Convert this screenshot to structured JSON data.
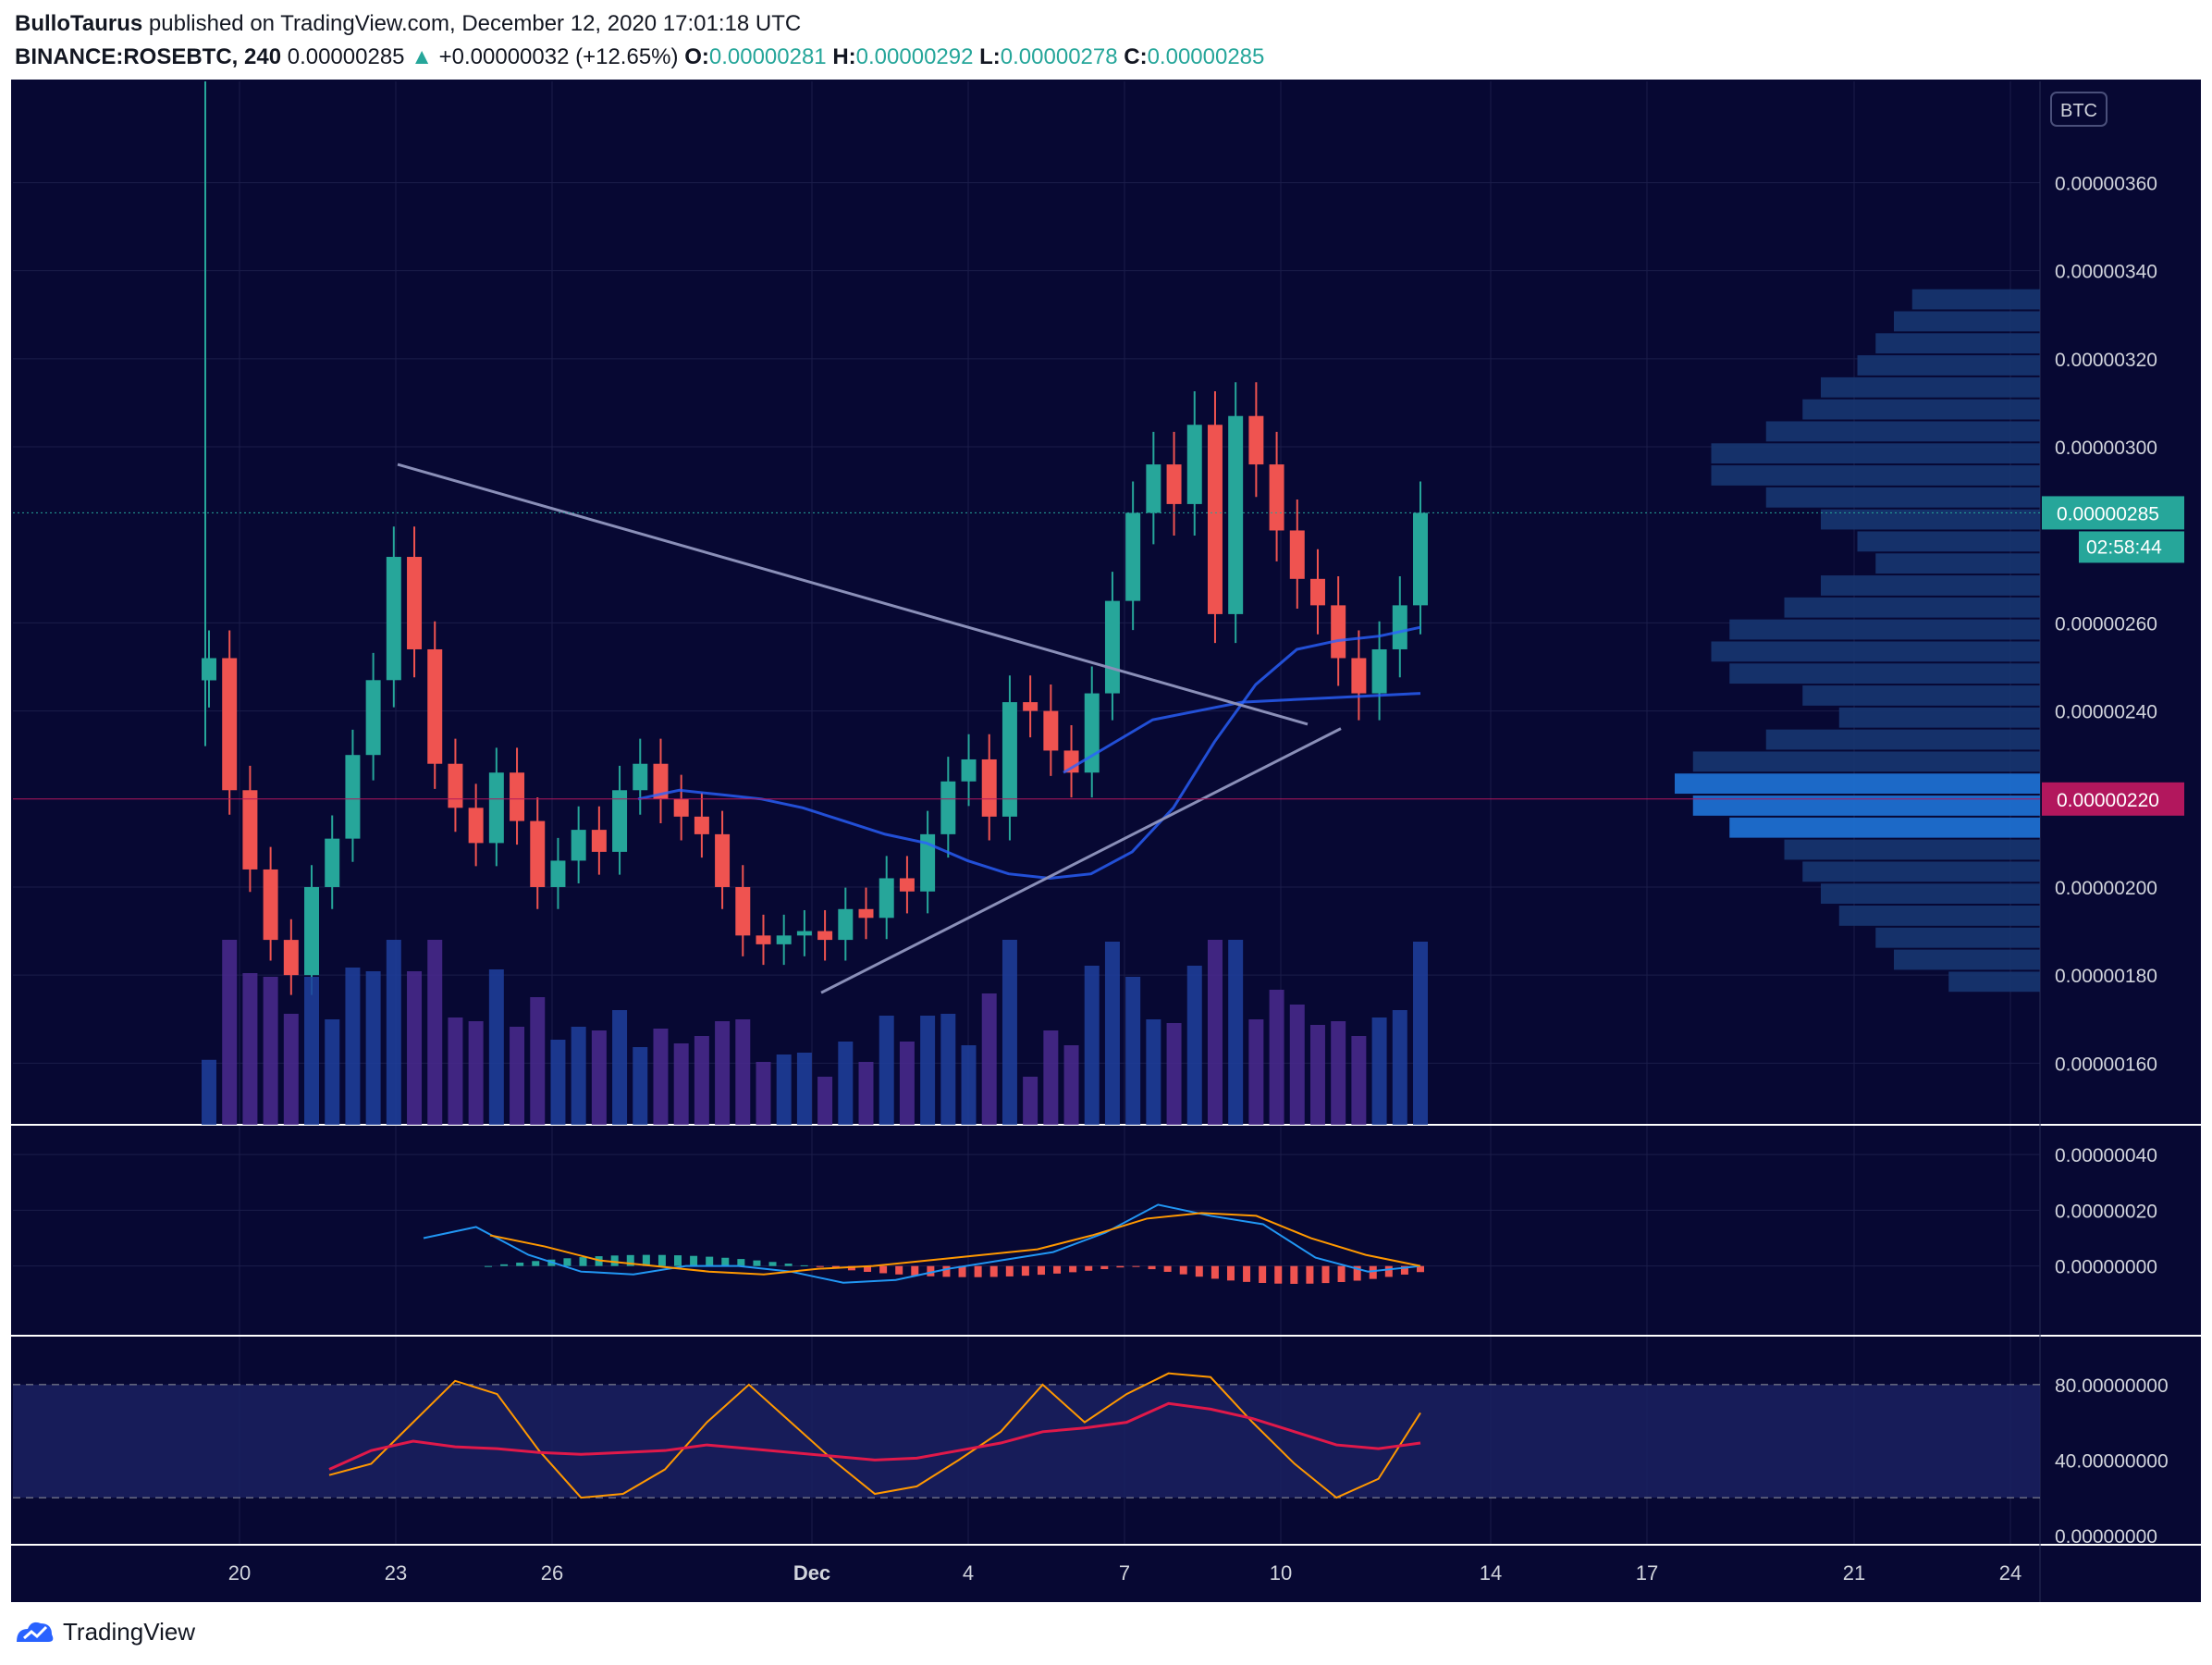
{
  "header": {
    "publisher": "BulloTaurus",
    "published_text": "published on TradingView.com, December 12, 2020 17:01:18 UTC",
    "symbol": "BINANCE:ROSEBTC, 240",
    "last": "0.00000285",
    "change_arrow": "▲",
    "change": "+0.00000032 (+12.65%)",
    "o_label": "O:",
    "o_value": "0.00000281",
    "h_label": "H:",
    "h_value": "0.00000292",
    "l_label": "L:",
    "l_value": "0.00000278",
    "c_label": "C:",
    "c_value": "0.00000285"
  },
  "footer": {
    "brand": "TradingView",
    "logo_icon": "tradingview-logo-icon"
  },
  "colors": {
    "background": "#070833",
    "up": "#26a69a",
    "down": "#ef5350",
    "grid": "#1b1d4a",
    "axis_text": "#d1d4dc",
    "ma": "#2962ff",
    "trendline": "#8a8fb8",
    "price_tag": "#26a69a",
    "poc_tag": "#b2175d",
    "macd": "#2196f3",
    "signal": "#ff9800",
    "rsi_ma": "#e0194a"
  },
  "chart_data": [
    {
      "type": "candlestick",
      "currency_badge": "BTC",
      "x_ticks": [
        "20",
        "23",
        "26",
        "Dec",
        "4",
        "7",
        "10",
        "14",
        "17",
        "21",
        "24"
      ],
      "y_ticks": [
        "0.00000360",
        "0.00000340",
        "0.00000320",
        "0.00000300",
        "0.00000260",
        "0.00000240",
        "0.00000200",
        "0.00000180",
        "0.00000160"
      ],
      "ylim": [
        1.46e-06,
        3.83e-06
      ],
      "last_price_tag": "0.00000285",
      "countdown": "02:58:44",
      "poc_price_tag": "0.00000220",
      "last_price": 2.85e-06,
      "poc_price": 2.2e-06,
      "close_series": [
        2.52e-06,
        2.22e-06,
        2.04e-06,
        1.88e-06,
        1.8e-06,
        2e-06,
        2.11e-06,
        2.3e-06,
        2.47e-06,
        2.75e-06,
        2.54e-06,
        2.28e-06,
        2.18e-06,
        2.1e-06,
        2.26e-06,
        2.15e-06,
        2e-06,
        2.06e-06,
        2.13e-06,
        2.08e-06,
        2.22e-06,
        2.28e-06,
        2.2e-06,
        2.16e-06,
        2.12e-06,
        2e-06,
        1.89e-06,
        1.87e-06,
        1.89e-06,
        1.9e-06,
        1.88e-06,
        1.95e-06,
        1.93e-06,
        2.02e-06,
        1.99e-06,
        2.12e-06,
        2.24e-06,
        2.29e-06,
        2.16e-06,
        2.42e-06,
        2.4e-06,
        2.31e-06,
        2.26e-06,
        2.44e-06,
        2.65e-06,
        2.85e-06,
        2.96e-06,
        2.87e-06,
        3.05e-06,
        2.62e-06,
        3.07e-06,
        2.96e-06,
        2.81e-06,
        2.7e-06,
        2.64e-06,
        2.52e-06,
        2.44e-06,
        2.54e-06,
        2.64e-06,
        2.85e-06
      ],
      "moving_averages": [
        {
          "name": "",
          "values": [
            2.2e-06,
            2.22e-06,
            2.21e-06,
            2.2e-06,
            2.18e-06,
            2.15e-06,
            2.12e-06,
            2.1e-06,
            2.06e-06,
            2.03e-06,
            2.02e-06,
            2.03e-06,
            2.08e-06,
            2.18e-06,
            2.33e-06,
            2.46e-06,
            2.54e-06,
            2.56e-06,
            2.57e-06,
            2.59e-06
          ]
        },
        {
          "name": "",
          "values": [
            2.26e-06,
            2.38e-06,
            2.42e-06,
            2.43e-06,
            2.44e-06
          ]
        }
      ],
      "trendlines": [
        {
          "from": [
            "23",
            2.96e-06
          ],
          "to": [
            "10",
            2.37e-06
          ]
        },
        {
          "from": [
            "Dec",
            1.76e-06
          ],
          "to": [
            "10",
            2.36e-06
          ]
        }
      ],
      "volume_profile": "horizontal histogram on right, point of control at 0.00000220"
    },
    {
      "type": "line",
      "name": "MACD",
      "y_ticks": [
        "0.00000040",
        "0.00000020",
        "0.00000000"
      ],
      "ylim": [
        -2.5e-07,
        5e-07
      ],
      "series": [
        {
          "name": "",
          "values": [
            1e-07,
            1.4e-07,
            4e-08,
            -2e-08,
            -3e-08,
            0.0,
            0.0,
            -2e-08,
            -6e-08,
            -5e-08,
            -1e-08,
            2e-08,
            5e-08,
            1.2e-07,
            2.2e-07,
            1.8e-07,
            1.5e-07,
            3e-08,
            -2e-08,
            0.0
          ]
        },
        {
          "name": "",
          "values": [
            1.1e-07,
            7e-08,
            2e-08,
            0.0,
            -2e-08,
            -3e-08,
            -1e-08,
            0.0,
            2e-08,
            4e-08,
            6e-08,
            1.1e-07,
            1.7e-07,
            1.9e-07,
            1.8e-07,
            1e-07,
            4e-08,
            0.0
          ]
        }
      ]
    },
    {
      "type": "line",
      "name": "RSI",
      "y_ticks": [
        "80.00000000",
        "40.00000000",
        "0.00000000"
      ],
      "ylim": [
        -5,
        105
      ],
      "band": [
        20,
        80
      ],
      "series": [
        {
          "name": "",
          "values": [
            32,
            38,
            60,
            82,
            75,
            45,
            20,
            22,
            35,
            60,
            80,
            60,
            40,
            22,
            26,
            40,
            55,
            80,
            60,
            75,
            86,
            84,
            60,
            38,
            20,
            30,
            65
          ]
        },
        {
          "name": "",
          "values": [
            35,
            45,
            50,
            47,
            46,
            44,
            43,
            44,
            45,
            48,
            46,
            44,
            42,
            40,
            41,
            45,
            49,
            55,
            57,
            60,
            70,
            67,
            62,
            55,
            48,
            46,
            49
          ]
        }
      ]
    }
  ]
}
